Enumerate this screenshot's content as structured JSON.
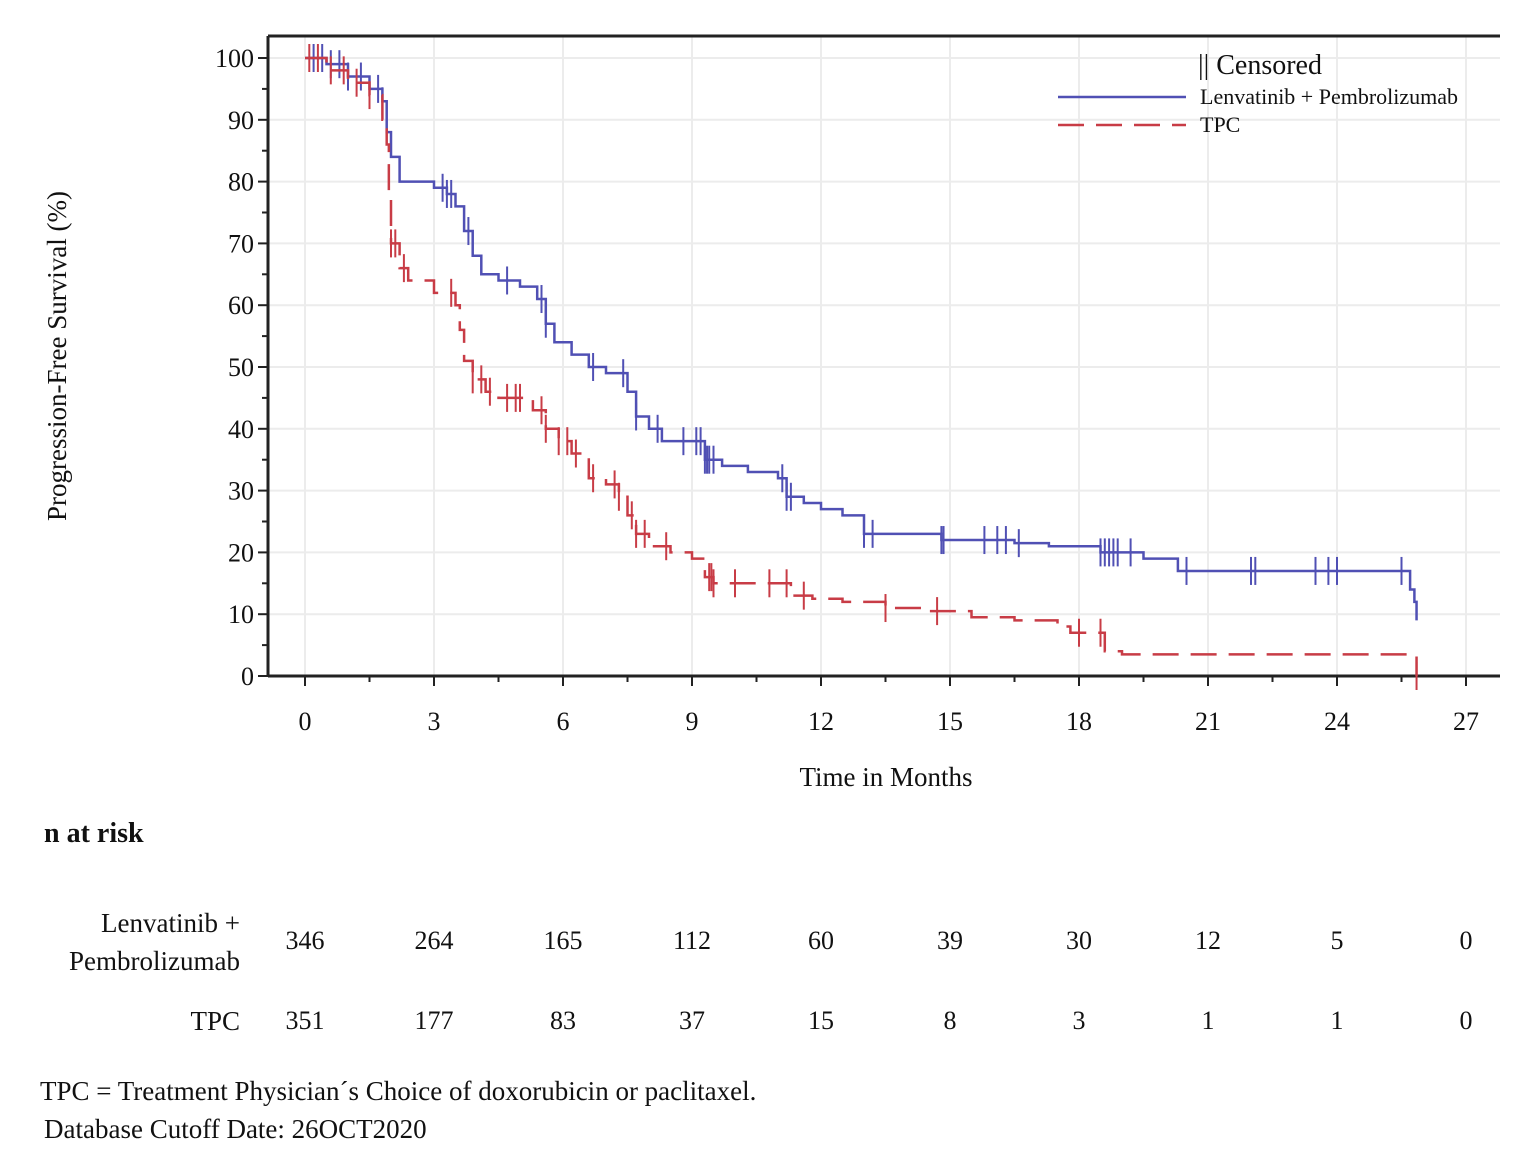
{
  "chart_data": {
    "type": "line",
    "xlabel": "Time in Months",
    "ylabel": "Progression-Free Survival (%)",
    "xlim": [
      -1,
      28
    ],
    "ylim": [
      0,
      100
    ],
    "x_ticks": [
      0,
      3,
      6,
      9,
      12,
      15,
      18,
      21,
      24,
      27
    ],
    "y_ticks": [
      0,
      10,
      20,
      30,
      40,
      50,
      60,
      70,
      80,
      90,
      100
    ],
    "grid": true,
    "legend": {
      "position": "top-right",
      "censored_label": "Censored",
      "censored_glyph": "||"
    },
    "series": [
      {
        "name": "Lenvatinib + Pembrolizumab",
        "color": "#5050b4",
        "dash": "solid",
        "points": [
          [
            0,
            100
          ],
          [
            0.5,
            99
          ],
          [
            1.0,
            97
          ],
          [
            1.5,
            95
          ],
          [
            1.8,
            93
          ],
          [
            1.9,
            88
          ],
          [
            2.0,
            84
          ],
          [
            2.2,
            80
          ],
          [
            2.5,
            80
          ],
          [
            3.0,
            79
          ],
          [
            3.3,
            78
          ],
          [
            3.5,
            76
          ],
          [
            3.7,
            72
          ],
          [
            3.9,
            68
          ],
          [
            4.1,
            65
          ],
          [
            4.5,
            64
          ],
          [
            5.0,
            63
          ],
          [
            5.4,
            61
          ],
          [
            5.6,
            57
          ],
          [
            5.8,
            54
          ],
          [
            6.2,
            52
          ],
          [
            6.6,
            50
          ],
          [
            7.0,
            49
          ],
          [
            7.5,
            46
          ],
          [
            7.7,
            42
          ],
          [
            8.0,
            40
          ],
          [
            8.3,
            38
          ],
          [
            9.0,
            38
          ],
          [
            9.3,
            35
          ],
          [
            9.7,
            34
          ],
          [
            10.3,
            33
          ],
          [
            11.0,
            32
          ],
          [
            11.2,
            29
          ],
          [
            11.6,
            28
          ],
          [
            12.0,
            27
          ],
          [
            12.5,
            26
          ],
          [
            13.0,
            23
          ],
          [
            13.5,
            23
          ],
          [
            14.0,
            23
          ],
          [
            14.8,
            22
          ],
          [
            15.5,
            22
          ],
          [
            16.5,
            21.5
          ],
          [
            17.3,
            21
          ],
          [
            18.5,
            20
          ],
          [
            19.5,
            19
          ],
          [
            20.3,
            17
          ],
          [
            21.0,
            17
          ],
          [
            22.5,
            17
          ],
          [
            23.5,
            17
          ],
          [
            25.5,
            17
          ],
          [
            25.7,
            14
          ],
          [
            25.8,
            12
          ],
          [
            25.85,
            10
          ],
          [
            25.85,
            9
          ]
        ],
        "censored_x": [
          0.2,
          0.4,
          0.6,
          0.8,
          1.0,
          1.3,
          1.7,
          1.8,
          3.2,
          3.3,
          3.4,
          3.8,
          4.7,
          5.5,
          5.6,
          6.7,
          7.4,
          7.7,
          8.2,
          8.8,
          9.1,
          9.2,
          9.3,
          9.35,
          9.4,
          9.5,
          11.1,
          11.2,
          11.3,
          13.0,
          13.2,
          14.8,
          14.85,
          15.8,
          16.1,
          16.3,
          16.6,
          18.5,
          18.6,
          18.7,
          18.8,
          18.9,
          19.2,
          20.5,
          22.0,
          22.1,
          23.5,
          23.8,
          24.0,
          25.5
        ]
      },
      {
        "name": "TPC",
        "color": "#c83c46",
        "dash": "dashed",
        "points": [
          [
            0,
            100
          ],
          [
            0.5,
            98
          ],
          [
            1.0,
            96
          ],
          [
            1.5,
            94
          ],
          [
            1.8,
            90
          ],
          [
            1.9,
            86
          ],
          [
            1.95,
            78
          ],
          [
            2.0,
            70
          ],
          [
            2.2,
            66
          ],
          [
            2.4,
            64
          ],
          [
            3.0,
            62
          ],
          [
            3.5,
            60
          ],
          [
            3.6,
            56
          ],
          [
            3.7,
            51
          ],
          [
            3.9,
            48
          ],
          [
            4.2,
            46
          ],
          [
            4.5,
            45
          ],
          [
            5.0,
            45
          ],
          [
            5.3,
            43
          ],
          [
            5.6,
            40
          ],
          [
            5.9,
            38
          ],
          [
            6.2,
            36
          ],
          [
            6.6,
            32
          ],
          [
            7.0,
            31
          ],
          [
            7.3,
            29
          ],
          [
            7.5,
            26
          ],
          [
            7.7,
            23
          ],
          [
            8.0,
            21
          ],
          [
            8.5,
            20
          ],
          [
            9.0,
            19
          ],
          [
            9.3,
            16
          ],
          [
            9.5,
            15
          ],
          [
            10.5,
            15
          ],
          [
            11.3,
            13
          ],
          [
            11.8,
            12.5
          ],
          [
            12.5,
            12
          ],
          [
            13.5,
            11
          ],
          [
            14.5,
            10.5
          ],
          [
            15.5,
            9.5
          ],
          [
            16.5,
            9
          ],
          [
            17.5,
            8
          ],
          [
            17.8,
            7
          ],
          [
            18.5,
            7
          ],
          [
            18.6,
            4
          ],
          [
            19.0,
            3.5
          ],
          [
            25.85,
            3.5
          ],
          [
            25.85,
            0
          ]
        ],
        "censored_x": [
          0.1,
          0.3,
          0.6,
          0.9,
          1.2,
          1.5,
          2.0,
          2.1,
          2.3,
          3.4,
          3.9,
          4.1,
          4.3,
          4.7,
          4.9,
          5.0,
          5.5,
          5.6,
          5.9,
          6.1,
          6.3,
          6.7,
          7.2,
          7.3,
          7.6,
          7.7,
          7.9,
          8.4,
          9.4,
          9.45,
          9.5,
          10.0,
          10.8,
          11.2,
          11.6,
          13.5,
          14.7,
          18.0,
          18.5,
          25.85
        ]
      }
    ],
    "risk_table": {
      "title": "n at risk",
      "times": [
        0,
        3,
        6,
        9,
        12,
        15,
        18,
        21,
        24,
        27
      ],
      "rows": [
        {
          "label_line1": "Lenvatinib +",
          "label_line2": "Pembrolizumab",
          "values": [
            346,
            264,
            165,
            112,
            60,
            39,
            30,
            12,
            5,
            0
          ]
        },
        {
          "label_line1": "TPC",
          "label_line2": "",
          "values": [
            351,
            177,
            83,
            37,
            15,
            8,
            3,
            1,
            1,
            0
          ]
        }
      ]
    },
    "footnotes": [
      "TPC = Treatment Physician´s Choice of doxorubicin or paclitaxel.",
      "Database Cutoff Date: 26OCT2020"
    ]
  }
}
